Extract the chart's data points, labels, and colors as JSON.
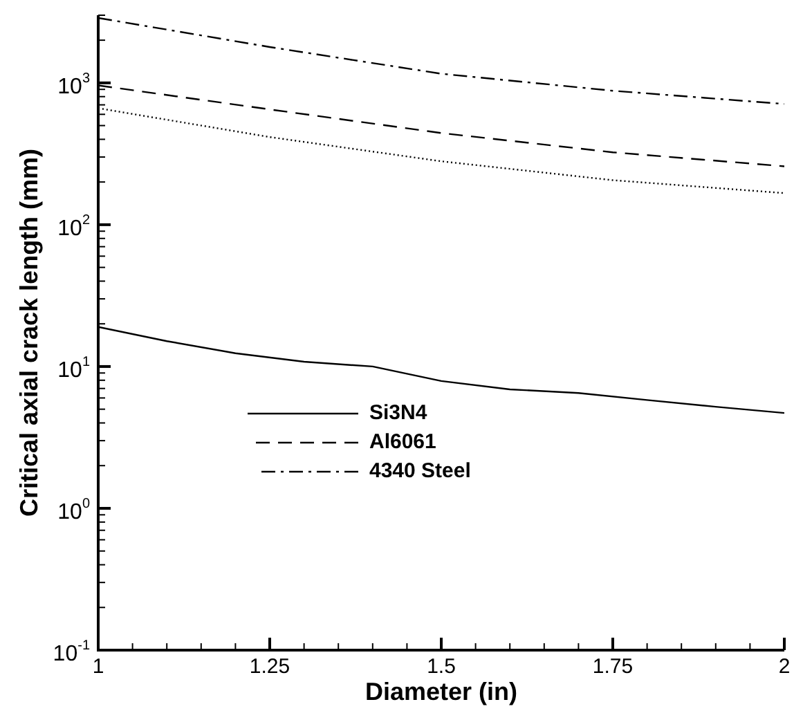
{
  "chart_data": {
    "type": "line",
    "xlabel": "Diameter (in)",
    "ylabel": "Critical axial crack length (mm)",
    "log": "y",
    "grid": false,
    "legend": "left",
    "marker": "none",
    "xlim": [
      1,
      2
    ],
    "xticks": [
      1,
      1.25,
      1.5,
      1.75,
      2
    ],
    "ylim": [
      0.1,
      3000
    ],
    "yticks": [
      {
        "value": 0.1,
        "label": "10$^{-1}$"
      },
      {
        "value": 1,
        "label": "10$^{0}$"
      },
      {
        "value": 10,
        "label": "10$^{1}$"
      },
      {
        "value": 100,
        "label": "10$^{2}$"
      },
      {
        "value": 1000,
        "label": "10$^{3}$"
      }
    ],
    "series": [
      {
        "name": "Si3N4",
        "color": "#000000",
        "line_style": "solid",
        "x": [
          1,
          1.1,
          1.2,
          1.3,
          1.4,
          1.5,
          1.6,
          1.7,
          1.8,
          1.9,
          2
        ],
        "values": [
          19,
          15.1,
          12.4,
          10.8,
          10,
          7.9,
          6.9,
          6.5,
          5.8,
          5.2,
          4.7
        ]
      },
      {
        "name": "Al6061",
        "color": "#000000",
        "line_style": "dashed",
        "x": [
          1,
          1.25,
          1.5,
          1.75,
          2
        ],
        "values": [
          960,
          650,
          443,
          324,
          258
        ]
      },
      {
        "name": "4340 Steel",
        "color": "#000000",
        "line_style": "dashdot",
        "x": [
          1,
          1.25,
          1.5,
          1.75,
          2
        ],
        "values": [
          2870,
          1790,
          1160,
          880,
          710
        ]
      },
      {
        "color": "#000000",
        "line_style": "dotted",
        "x": [
          1,
          1.25,
          1.5,
          1.75,
          2
        ],
        "values": [
          663,
          415,
          280,
          206,
          167
        ]
      }
    ]
  }
}
